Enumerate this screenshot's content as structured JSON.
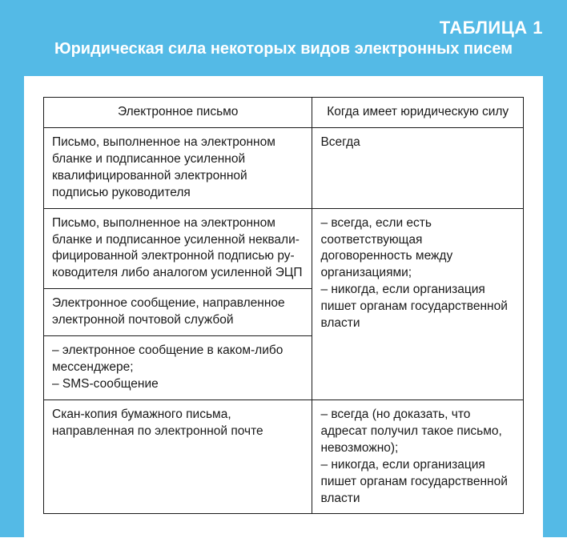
{
  "page": {
    "background": "#54bae6",
    "card_background": "#ffffff",
    "text_color": "#1a1a1a",
    "border_color": "#1a1a1a",
    "title_color": "#ffffff",
    "title_number_fontsize": 22,
    "title_text_fontsize": 20,
    "cell_fontsize": 15.5
  },
  "title": {
    "number": "ТАБЛИЦА 1",
    "text": "Юридическая сила некоторых видов электронных писем"
  },
  "table": {
    "col_widths_pct": [
      56,
      44
    ],
    "headers": {
      "col1": "Электронное письмо",
      "col2": "Когда имеет юридическую силу"
    },
    "rows": [
      {
        "col1": "Письмо, выполненное на электронном бланке и подписанное усиленной квалифицированной электронной подписью руководителя",
        "col2": "Всегда",
        "col2_rowspan": 1
      },
      {
        "col1": "Письмо, выполненное на электронном бланке и подписанное усиленной неквали­фицированной электронной подписью ру­ководителя либо аналогом усиленной ЭЦП",
        "col2": "– всегда, если есть соответствующая договоренность между организациями;\n– никогда, если организация пишет органам государственной власти",
        "col2_rowspan": 3
      },
      {
        "col1": "Электронное сообщение, направленное электронной почтовой службой"
      },
      {
        "col1": "– электронное сообщение в каком-либо мессенджере;\n– SMS-сообщение"
      },
      {
        "col1": "Скан-копия бумажного письма, направленная по электронной почте",
        "col2": "– всегда (но доказать, что адресат получил такое письмо, невозможно);\n– никогда, если органи­зация пишет органам государственной власти",
        "col2_rowspan": 1
      }
    ]
  }
}
